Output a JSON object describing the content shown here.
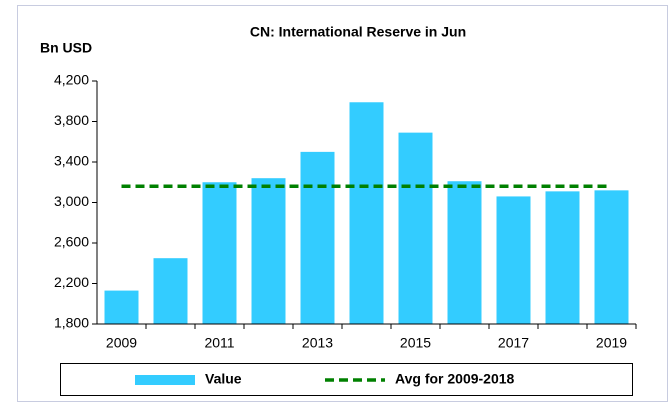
{
  "chart_data": {
    "type": "bar",
    "title": "CN: International Reserve in Jun",
    "y_label": "Bn USD",
    "categories": [
      "2009",
      null,
      "2011",
      null,
      "2013",
      null,
      "2015",
      null,
      "2017",
      null,
      "2019"
    ],
    "series": [
      {
        "name": "Value",
        "color": "#33ccff",
        "type": "bar",
        "values": [
          2130,
          2450,
          3200,
          3240,
          3500,
          3990,
          3690,
          3210,
          3060,
          3110,
          3120
        ]
      },
      {
        "name": "Avg for 2009-2018",
        "color": "#008000",
        "type": "line",
        "values": [
          3160,
          3160,
          3160,
          3160,
          3160,
          3160,
          3160,
          3160,
          3160,
          3160,
          3160
        ]
      }
    ],
    "ylim": [
      1800,
      4200
    ],
    "yticks": [
      {
        "value": 1800,
        "label": "1,800"
      },
      {
        "value": 2200,
        "label": "2,200"
      },
      {
        "value": 2600,
        "label": "2,600"
      },
      {
        "value": 3000,
        "label": "3,000"
      },
      {
        "value": 3400,
        "label": "3,400"
      },
      {
        "value": 3800,
        "label": "3,800"
      },
      {
        "value": 4200,
        "label": "4,200"
      }
    ],
    "grid": false
  }
}
